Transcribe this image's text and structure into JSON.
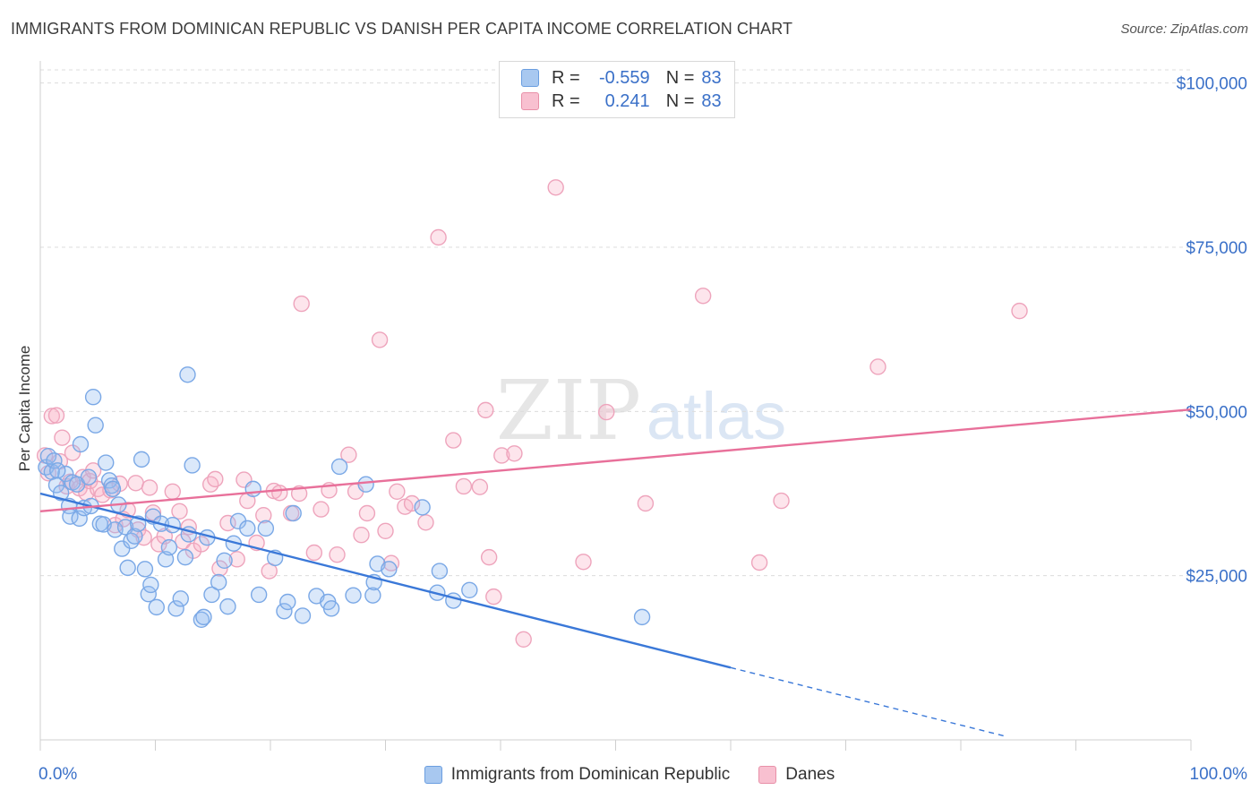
{
  "header": {
    "title": "IMMIGRANTS FROM DOMINICAN REPUBLIC VS DANISH PER CAPITA INCOME CORRELATION CHART",
    "source": "Source: ZipAtlas.com"
  },
  "legend": {
    "rows": [
      {
        "r_label": "R =",
        "r_value": "-0.559",
        "n_label": "N =",
        "n_value": "83",
        "color": "#a8c8f0",
        "border": "#6b9ee0"
      },
      {
        "r_label": "R =",
        "r_value": "0.241",
        "n_label": "N =",
        "n_value": "83",
        "color": "#f8c0d0",
        "border": "#e890a8"
      }
    ]
  },
  "bottom_legend": {
    "items": [
      {
        "label": "Immigrants from Dominican Republic",
        "color": "#a8c8f0",
        "border": "#6b9ee0"
      },
      {
        "label": "Danes",
        "color": "#f8c0d0",
        "border": "#e890a8"
      }
    ]
  },
  "watermark": {
    "part1": "ZIP",
    "part2": "atlas"
  },
  "chart_data": {
    "type": "scatter",
    "ylabel": "Per Capita Income",
    "xlim": [
      0,
      100
    ],
    "ylim": [
      0,
      102000
    ],
    "x_tick_labels": [
      "0.0%",
      "100.0%"
    ],
    "y_ticks": [
      25000,
      50000,
      75000,
      100000
    ],
    "y_tick_labels": [
      "$25,000",
      "$50,000",
      "$75,000",
      "$100,000"
    ],
    "grid": true,
    "colors": {
      "blue": "#3a78d8",
      "pink": "#e8709a",
      "blue_fill": "rgba(150,190,240,0.35)",
      "pink_fill": "rgba(248,180,200,0.35)"
    },
    "series": [
      {
        "name": "Immigrants from Dominican Republic",
        "trend": {
          "x": [
            0,
            60
          ],
          "y": [
            37500,
            11000
          ],
          "dashed_to": [
            84,
            500
          ]
        },
        "points": [
          [
            0.5,
            41500
          ],
          [
            0.7,
            43200
          ],
          [
            1.0,
            40800
          ],
          [
            1.2,
            42500
          ],
          [
            1.4,
            38800
          ],
          [
            1.8,
            37600
          ],
          [
            2.2,
            40500
          ],
          [
            2.5,
            35600
          ],
          [
            2.6,
            34000
          ],
          [
            2.8,
            39200
          ],
          [
            3.2,
            38900
          ],
          [
            3.4,
            33700
          ],
          [
            3.5,
            45000
          ],
          [
            3.8,
            35300
          ],
          [
            4.2,
            40000
          ],
          [
            4.4,
            35600
          ],
          [
            4.6,
            52200
          ],
          [
            4.8,
            47900
          ],
          [
            5.2,
            32900
          ],
          [
            5.5,
            32800
          ],
          [
            5.7,
            42200
          ],
          [
            6.0,
            39500
          ],
          [
            6.2,
            38700
          ],
          [
            6.5,
            32000
          ],
          [
            6.8,
            35800
          ],
          [
            7.1,
            29100
          ],
          [
            7.4,
            32400
          ],
          [
            7.6,
            26200
          ],
          [
            7.9,
            30300
          ],
          [
            8.2,
            31000
          ],
          [
            8.5,
            32900
          ],
          [
            8.8,
            42700
          ],
          [
            9.1,
            26000
          ],
          [
            9.4,
            22200
          ],
          [
            9.6,
            23600
          ],
          [
            9.8,
            34000
          ],
          [
            10.1,
            20200
          ],
          [
            10.5,
            32900
          ],
          [
            10.9,
            27500
          ],
          [
            11.2,
            29300
          ],
          [
            11.5,
            32700
          ],
          [
            11.8,
            20000
          ],
          [
            12.2,
            21500
          ],
          [
            12.6,
            27800
          ],
          [
            12.9,
            31300
          ],
          [
            13.2,
            41800
          ],
          [
            14.0,
            18300
          ],
          [
            14.2,
            18700
          ],
          [
            14.5,
            30800
          ],
          [
            14.9,
            22100
          ],
          [
            15.5,
            24000
          ],
          [
            16.0,
            27300
          ],
          [
            16.3,
            20300
          ],
          [
            16.8,
            29900
          ],
          [
            17.2,
            33300
          ],
          [
            18.0,
            32200
          ],
          [
            18.5,
            38200
          ],
          [
            19.0,
            22100
          ],
          [
            19.6,
            32200
          ],
          [
            20.4,
            27700
          ],
          [
            21.2,
            19600
          ],
          [
            21.5,
            21000
          ],
          [
            22.0,
            34500
          ],
          [
            22.8,
            18900
          ],
          [
            24.0,
            21900
          ],
          [
            25.0,
            21000
          ],
          [
            25.3,
            20000
          ],
          [
            26.0,
            41600
          ],
          [
            27.2,
            22000
          ],
          [
            28.3,
            38900
          ],
          [
            28.9,
            22000
          ],
          [
            29.0,
            24000
          ],
          [
            29.3,
            26800
          ],
          [
            30.3,
            26000
          ],
          [
            33.2,
            35400
          ],
          [
            34.5,
            22400
          ],
          [
            34.7,
            25700
          ],
          [
            35.9,
            21200
          ],
          [
            37.3,
            22800
          ],
          [
            52.3,
            18700
          ],
          [
            12.8,
            55600
          ],
          [
            1.5,
            41000
          ],
          [
            6.3,
            38200
          ]
        ]
      },
      {
        "name": "Danes",
        "trend": {
          "x": [
            0,
            100
          ],
          "y": [
            34800,
            50300
          ]
        },
        "points": [
          [
            0.4,
            43300
          ],
          [
            0.7,
            40600
          ],
          [
            1.0,
            49300
          ],
          [
            1.4,
            49400
          ],
          [
            1.7,
            42400
          ],
          [
            1.9,
            46000
          ],
          [
            2.3,
            38600
          ],
          [
            2.6,
            39300
          ],
          [
            2.8,
            43700
          ],
          [
            3.4,
            38300
          ],
          [
            3.7,
            40000
          ],
          [
            4.0,
            37600
          ],
          [
            4.3,
            39400
          ],
          [
            4.6,
            41000
          ],
          [
            5.0,
            38200
          ],
          [
            5.4,
            37300
          ],
          [
            6.1,
            38000
          ],
          [
            6.5,
            32700
          ],
          [
            6.9,
            39000
          ],
          [
            7.2,
            33600
          ],
          [
            7.6,
            35000
          ],
          [
            8.3,
            39100
          ],
          [
            8.5,
            32000
          ],
          [
            9.0,
            30800
          ],
          [
            9.5,
            38400
          ],
          [
            9.8,
            34600
          ],
          [
            10.3,
            29800
          ],
          [
            10.8,
            31000
          ],
          [
            11.5,
            37800
          ],
          [
            12.1,
            34800
          ],
          [
            12.4,
            30200
          ],
          [
            12.9,
            32400
          ],
          [
            13.3,
            28800
          ],
          [
            14.0,
            29800
          ],
          [
            14.8,
            38900
          ],
          [
            15.2,
            39700
          ],
          [
            15.6,
            26100
          ],
          [
            16.3,
            33000
          ],
          [
            17.1,
            27500
          ],
          [
            17.7,
            39600
          ],
          [
            18.0,
            36400
          ],
          [
            18.8,
            30000
          ],
          [
            19.4,
            34200
          ],
          [
            19.9,
            25700
          ],
          [
            20.3,
            37900
          ],
          [
            20.8,
            37600
          ],
          [
            21.8,
            34500
          ],
          [
            22.5,
            37500
          ],
          [
            22.7,
            66400
          ],
          [
            23.8,
            28500
          ],
          [
            24.4,
            35100
          ],
          [
            25.1,
            38000
          ],
          [
            25.8,
            28200
          ],
          [
            26.8,
            43400
          ],
          [
            27.4,
            37800
          ],
          [
            27.9,
            31200
          ],
          [
            28.4,
            34500
          ],
          [
            29.5,
            60900
          ],
          [
            30.0,
            31800
          ],
          [
            30.5,
            26900
          ],
          [
            31.0,
            37800
          ],
          [
            31.7,
            35500
          ],
          [
            32.3,
            36000
          ],
          [
            33.5,
            33100
          ],
          [
            34.6,
            76500
          ],
          [
            35.9,
            45600
          ],
          [
            36.8,
            38600
          ],
          [
            38.2,
            38500
          ],
          [
            38.7,
            50200
          ],
          [
            39.0,
            27800
          ],
          [
            40.1,
            43300
          ],
          [
            41.2,
            43600
          ],
          [
            42.0,
            15300
          ],
          [
            44.8,
            84100
          ],
          [
            47.2,
            27100
          ],
          [
            49.2,
            49900
          ],
          [
            52.6,
            36000
          ],
          [
            57.6,
            67600
          ],
          [
            62.5,
            27000
          ],
          [
            64.4,
            36400
          ],
          [
            72.8,
            56800
          ],
          [
            85.1,
            65300
          ],
          [
            39.4,
            21800
          ]
        ]
      }
    ]
  }
}
